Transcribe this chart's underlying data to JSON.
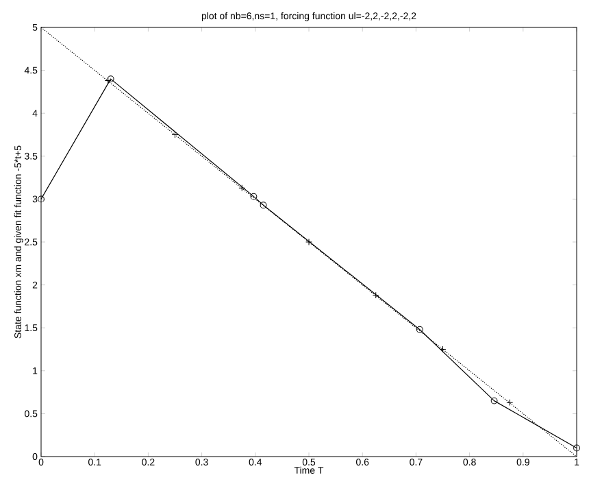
{
  "chart_data": {
    "type": "line",
    "title": "plot of nb=6,ns=1, forcing function ul=-2,2,-2,2,-2,2",
    "xlabel": "Time T",
    "ylabel": "State function xm and given fit function -5*t+5",
    "xlim": [
      0,
      1
    ],
    "ylim": [
      0,
      5
    ],
    "xticks": [
      0,
      0.1,
      0.2,
      0.3,
      0.4,
      0.5,
      0.6,
      0.7,
      0.8,
      0.9,
      1
    ],
    "yticks": [
      0,
      0.5,
      1,
      1.5,
      2,
      2.5,
      3,
      3.5,
      4,
      4.5,
      5
    ],
    "grid": false,
    "series": [
      {
        "color": "#000000",
        "marker": "circle",
        "line_style": "solid",
        "x": [
          0,
          0.13,
          0.397,
          0.415,
          0.707,
          0.846,
          1
        ],
        "values": [
          3.0,
          4.4,
          3.03,
          2.93,
          1.48,
          0.65,
          0.1
        ]
      },
      {
        "color": "#000000",
        "marker": "none",
        "line_style": "dotted",
        "x": [
          0,
          1
        ],
        "values": [
          5,
          0
        ]
      },
      {
        "type": "scatter",
        "color": "#000000",
        "marker": "cross",
        "x": [
          0.125,
          0.25,
          0.375,
          0.5,
          0.625,
          0.75,
          0.875
        ],
        "values": [
          4.38,
          3.75,
          3.13,
          2.5,
          1.88,
          1.25,
          0.63
        ]
      }
    ]
  }
}
